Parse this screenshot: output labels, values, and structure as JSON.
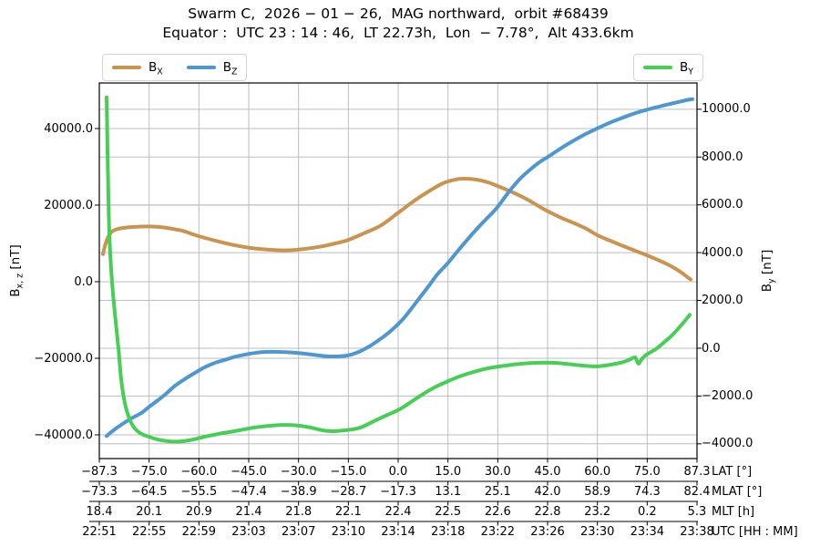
{
  "figure": {
    "title": "Swarm C,  2026 − 01 − 26,  MAG northward,  orbit #68439",
    "subtitle": "Equator :  UTC 23 : 14 : 46,  LT 22.73h,  Lon  − 7.78°,  Alt 433.6km"
  },
  "colors": {
    "bx": "#c99450",
    "bz": "#4e97d1",
    "by": "#47ce55",
    "grid": "#bdbdbd",
    "spine": "#000000"
  },
  "legend": {
    "bx": {
      "main": "B",
      "sub": "X"
    },
    "bz": {
      "main": "B",
      "sub": "Z"
    },
    "by": {
      "main": "B",
      "sub": "Y"
    }
  },
  "axes": {
    "left": {
      "label_main": "B",
      "label_sub": "x, z",
      "label_unit": " [nT]",
      "tick_labels": [
        "40000.0",
        "20000.0",
        "0.0",
        "−20000.0",
        "−40000.0"
      ],
      "tick_values": [
        40000,
        20000,
        0,
        -20000,
        -40000
      ]
    },
    "right": {
      "label_main": "B",
      "label_sub": "y",
      "label_unit": " [nT]",
      "tick_labels": [
        "10000.0",
        "8000.0",
        "6000.0",
        "4000.0",
        "2000.0",
        "0.0",
        "−2000.0",
        "−4000.0"
      ],
      "tick_values": [
        10000,
        8000,
        6000,
        4000,
        2000,
        0,
        -2000,
        -4000
      ]
    },
    "bottom_rows": [
      {
        "name": "LAT [°]",
        "values": [
          "−87.3",
          "−75.0",
          "−60.0",
          "−45.0",
          "−30.0",
          "−15.0",
          "0.0",
          "15.0",
          "30.0",
          "45.0",
          "60.0",
          "75.0",
          "87.3"
        ]
      },
      {
        "name": "MLAT [°]",
        "values": [
          "−73.3",
          "−64.5",
          "−55.5",
          "−47.4",
          "−38.9",
          "−28.7",
          "−17.3",
          "13.1",
          "25.1",
          "42.0",
          "58.9",
          "74.3",
          "82.4"
        ]
      },
      {
        "name": "MLT [h]",
        "values": [
          "18.4",
          "20.1",
          "20.9",
          "21.4",
          "21.8",
          "22.1",
          "22.4",
          "22.5",
          "22.6",
          "22.8",
          "23.2",
          "0.2",
          "5.3"
        ]
      },
      {
        "name": "UTC [HH : MM]",
        "values": [
          "22:51",
          "22:55",
          "22:59",
          "23:03",
          "23:07",
          "23:10",
          "23:14",
          "23:18",
          "23:22",
          "23:26",
          "23:30",
          "23:34",
          "23:38"
        ]
      }
    ]
  },
  "chart_data": {
    "type": "line",
    "title": "Swarm C, 2026-01-26, MAG northward, orbit #68439",
    "subtitle": "Equator: UTC 23:14:46, LT 22.73h, Lon −7.78°, Alt 433.6km",
    "x_categories_lat": [
      -87.3,
      -75.0,
      -60.0,
      -45.0,
      -30.0,
      -15.0,
      0.0,
      15.0,
      30.0,
      45.0,
      60.0,
      75.0,
      87.3
    ],
    "left_ylabel": "Bx,z [nT]",
    "right_ylabel": "By [nT]",
    "left_ylim": [
      -46190,
      51905
    ],
    "right_ylim": [
      -4618,
      11101
    ],
    "grid": true,
    "legend_position": "top",
    "series": [
      {
        "name": "Bx",
        "axis": "left",
        "color_key": "bx",
        "values_at_ticks": [
          7200,
          14400,
          11900,
          8800,
          8400,
          10900,
          18000,
          26500,
          24900,
          18300,
          12100,
          6900,
          600
        ],
        "samples": [
          [
            113,
            7200
          ],
          [
            115,
            9200
          ],
          [
            118,
            11300
          ],
          [
            122,
            12900
          ],
          [
            128,
            13700
          ],
          [
            140,
            14200
          ],
          [
            155,
            14400
          ],
          [
            168,
            14400
          ],
          [
            182,
            14100
          ],
          [
            200,
            13300
          ],
          [
            218,
            11900
          ],
          [
            240,
            10500
          ],
          [
            258,
            9500
          ],
          [
            275,
            8800
          ],
          [
            295,
            8350
          ],
          [
            312,
            8200
          ],
          [
            328,
            8400
          ],
          [
            350,
            9100
          ],
          [
            368,
            10000
          ],
          [
            382,
            10900
          ],
          [
            400,
            12700
          ],
          [
            418,
            14700
          ],
          [
            437,
            18000
          ],
          [
            455,
            21200
          ],
          [
            472,
            23800
          ],
          [
            486,
            25700
          ],
          [
            500,
            26700
          ],
          [
            510,
            26900
          ],
          [
            522,
            26700
          ],
          [
            535,
            26000
          ],
          [
            547,
            24900
          ],
          [
            562,
            23400
          ],
          [
            577,
            21700
          ],
          [
            590,
            19900
          ],
          [
            602,
            18300
          ],
          [
            616,
            16700
          ],
          [
            630,
            15300
          ],
          [
            643,
            13900
          ],
          [
            656,
            12100
          ],
          [
            670,
            10700
          ],
          [
            683,
            9400
          ],
          [
            697,
            8100
          ],
          [
            710,
            6900
          ],
          [
            722,
            5700
          ],
          [
            733,
            4500
          ],
          [
            742,
            3300
          ],
          [
            749,
            2200
          ],
          [
            755,
            1100
          ],
          [
            758,
            600
          ]
        ]
      },
      {
        "name": "Bz",
        "axis": "left",
        "color_key": "bz",
        "values_at_ticks": [
          -40300,
          -32800,
          -23200,
          -18800,
          -18550,
          -19200,
          -11500,
          5000,
          20000,
          32700,
          40100,
          44900,
          47700
        ],
        "samples": [
          [
            117,
            -40300
          ],
          [
            122,
            -39300
          ],
          [
            128,
            -38200
          ],
          [
            136,
            -36900
          ],
          [
            145,
            -35600
          ],
          [
            155,
            -34300
          ],
          [
            163,
            -32800
          ],
          [
            172,
            -31200
          ],
          [
            182,
            -29300
          ],
          [
            192,
            -27200
          ],
          [
            203,
            -25400
          ],
          [
            214,
            -23800
          ],
          [
            225,
            -22300
          ],
          [
            236,
            -21200
          ],
          [
            247,
            -20400
          ],
          [
            258,
            -19600
          ],
          [
            270,
            -19000
          ],
          [
            283,
            -18500
          ],
          [
            296,
            -18300
          ],
          [
            310,
            -18350
          ],
          [
            322,
            -18500
          ],
          [
            335,
            -18800
          ],
          [
            348,
            -19200
          ],
          [
            360,
            -19500
          ],
          [
            372,
            -19500
          ],
          [
            383,
            -19200
          ],
          [
            394,
            -18300
          ],
          [
            404,
            -17100
          ],
          [
            413,
            -15700
          ],
          [
            422,
            -14200
          ],
          [
            431,
            -12400
          ],
          [
            441,
            -10100
          ],
          [
            450,
            -7500
          ],
          [
            460,
            -4400
          ],
          [
            470,
            -1300
          ],
          [
            480,
            1900
          ],
          [
            492,
            5000
          ],
          [
            503,
            8200
          ],
          [
            513,
            11000
          ],
          [
            523,
            13700
          ],
          [
            533,
            16200
          ],
          [
            545,
            19200
          ],
          [
            558,
            23300
          ],
          [
            570,
            26700
          ],
          [
            581,
            29100
          ],
          [
            592,
            31200
          ],
          [
            602,
            32700
          ],
          [
            616,
            34900
          ],
          [
            630,
            36900
          ],
          [
            643,
            38600
          ],
          [
            656,
            40100
          ],
          [
            670,
            41600
          ],
          [
            683,
            42800
          ],
          [
            697,
            44000
          ],
          [
            710,
            44900
          ],
          [
            723,
            45700
          ],
          [
            735,
            46400
          ],
          [
            746,
            47000
          ],
          [
            755,
            47500
          ],
          [
            760,
            47700
          ]
        ]
      },
      {
        "name": "By",
        "axis": "right",
        "color_key": "by",
        "values_at_ticks": [
          10500,
          -3700,
          -3760,
          -3360,
          -3240,
          -3420,
          -2590,
          -1375,
          -800,
          -615,
          -755,
          -270,
          1400
        ],
        "samples": [
          [
            117,
            10500
          ],
          [
            118,
            8300
          ],
          [
            119,
            6300
          ],
          [
            120,
            4800
          ],
          [
            122,
            3300
          ],
          [
            124,
            2300
          ],
          [
            127,
            1100
          ],
          [
            130,
            0
          ],
          [
            133,
            -1300
          ],
          [
            137,
            -2300
          ],
          [
            142,
            -2950
          ],
          [
            148,
            -3360
          ],
          [
            155,
            -3580
          ],
          [
            163,
            -3700
          ],
          [
            172,
            -3810
          ],
          [
            182,
            -3880
          ],
          [
            192,
            -3910
          ],
          [
            202,
            -3890
          ],
          [
            212,
            -3820
          ],
          [
            225,
            -3700
          ],
          [
            238,
            -3600
          ],
          [
            250,
            -3520
          ],
          [
            262,
            -3440
          ],
          [
            273,
            -3360
          ],
          [
            285,
            -3290
          ],
          [
            298,
            -3240
          ],
          [
            310,
            -3210
          ],
          [
            320,
            -3215
          ],
          [
            330,
            -3250
          ],
          [
            342,
            -3330
          ],
          [
            352,
            -3420
          ],
          [
            362,
            -3470
          ],
          [
            372,
            -3460
          ],
          [
            382,
            -3420
          ],
          [
            395,
            -3330
          ],
          [
            408,
            -3100
          ],
          [
            420,
            -2880
          ],
          [
            437,
            -2590
          ],
          [
            450,
            -2280
          ],
          [
            463,
            -1950
          ],
          [
            477,
            -1640
          ],
          [
            492,
            -1375
          ],
          [
            506,
            -1160
          ],
          [
            520,
            -990
          ],
          [
            533,
            -860
          ],
          [
            545,
            -780
          ],
          [
            558,
            -710
          ],
          [
            570,
            -660
          ],
          [
            582,
            -625
          ],
          [
            594,
            -605
          ],
          [
            606,
            -610
          ],
          [
            618,
            -640
          ],
          [
            630,
            -690
          ],
          [
            642,
            -735
          ],
          [
            653,
            -760
          ],
          [
            663,
            -730
          ],
          [
            673,
            -670
          ],
          [
            682,
            -600
          ],
          [
            689,
            -510
          ],
          [
            694,
            -420
          ],
          [
            697,
            -380
          ],
          [
            699,
            -520
          ],
          [
            701,
            -650
          ],
          [
            704,
            -480
          ],
          [
            708,
            -310
          ],
          [
            713,
            -190
          ],
          [
            719,
            -60
          ],
          [
            725,
            120
          ],
          [
            731,
            320
          ],
          [
            737,
            520
          ],
          [
            743,
            760
          ],
          [
            748,
            980
          ],
          [
            753,
            1200
          ],
          [
            757,
            1400
          ]
        ]
      }
    ]
  }
}
